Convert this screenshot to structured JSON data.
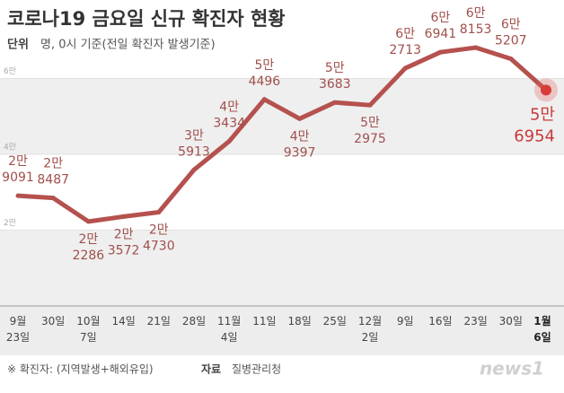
{
  "chart_data": {
    "type": "line",
    "title": "코로나19 금요일 신규 확진자 현황",
    "unit_label": "단위",
    "unit": "명, 0시 기준(전일 확진자 발생기준)",
    "categories": [
      "9월\n23일",
      "30일",
      "10월\n7일",
      "14일",
      "21일",
      "28일",
      "11월\n4일",
      "11일",
      "18일",
      "25일",
      "12월\n2일",
      "9일",
      "16일",
      "23일",
      "30일",
      "1월\n6일"
    ],
    "series": [
      {
        "name": "신규 확진자",
        "color": "#b5514e",
        "values": [
          29091,
          28487,
          22286,
          23572,
          24730,
          35913,
          43434,
          54496,
          49397,
          53683,
          52975,
          62713,
          66941,
          68153,
          65207,
          56954
        ],
        "value_labels": [
          "2만\n9091",
          "2만\n8487",
          "2만\n2286",
          "2만\n3572",
          "2만\n4730",
          "3만\n5913",
          "4만\n3434",
          "5만\n4496",
          "4만\n9397",
          "5만\n3683",
          "5만\n2975",
          "6만\n2713",
          "6만\n6941",
          "6만\n8153",
          "6만\n5207",
          "5만\n6954"
        ]
      }
    ],
    "ylim": [
      0,
      70000
    ],
    "yticks": [
      {
        "value": 20000,
        "label": "2만"
      },
      {
        "value": 40000,
        "label": "4만"
      },
      {
        "value": 60000,
        "label": "6만"
      }
    ],
    "note": "※ 확진자: (지역발생+해외유입)",
    "source_label": "자료",
    "source": "질병관리청",
    "logo": "news1"
  }
}
